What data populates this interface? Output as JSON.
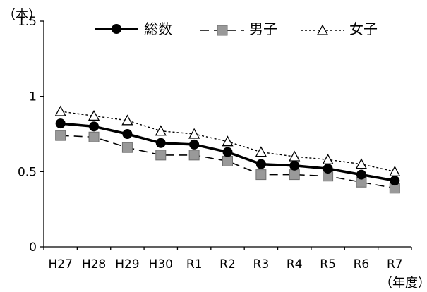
{
  "chart_data": {
    "type": "line",
    "y_unit_label": "（本）",
    "x_unit_label": "（年度）",
    "categories": [
      "H27",
      "H28",
      "H29",
      "H30",
      "R1",
      "R2",
      "R3",
      "R4",
      "R5",
      "R6",
      "R7"
    ],
    "ylim": [
      0,
      1.5
    ],
    "yticks": [
      "0",
      "0.5",
      "1",
      "1.5"
    ],
    "grid": false,
    "legend_position": "top",
    "series": [
      {
        "name": "総数",
        "style": "solid-line-filled-circle",
        "color": "#000000",
        "values": [
          0.82,
          0.8,
          0.75,
          0.69,
          0.68,
          0.63,
          0.55,
          0.54,
          0.52,
          0.48,
          0.44
        ]
      },
      {
        "name": "男子",
        "style": "dashed-line-gray-square",
        "color": "#000000",
        "marker_fill": "#999999",
        "values": [
          0.74,
          0.73,
          0.66,
          0.61,
          0.61,
          0.57,
          0.48,
          0.48,
          0.47,
          0.43,
          0.39
        ]
      },
      {
        "name": "女子",
        "style": "dotted-line-open-triangle",
        "color": "#000000",
        "values": [
          0.9,
          0.87,
          0.84,
          0.77,
          0.75,
          0.7,
          0.63,
          0.6,
          0.58,
          0.55,
          0.5
        ]
      }
    ]
  }
}
